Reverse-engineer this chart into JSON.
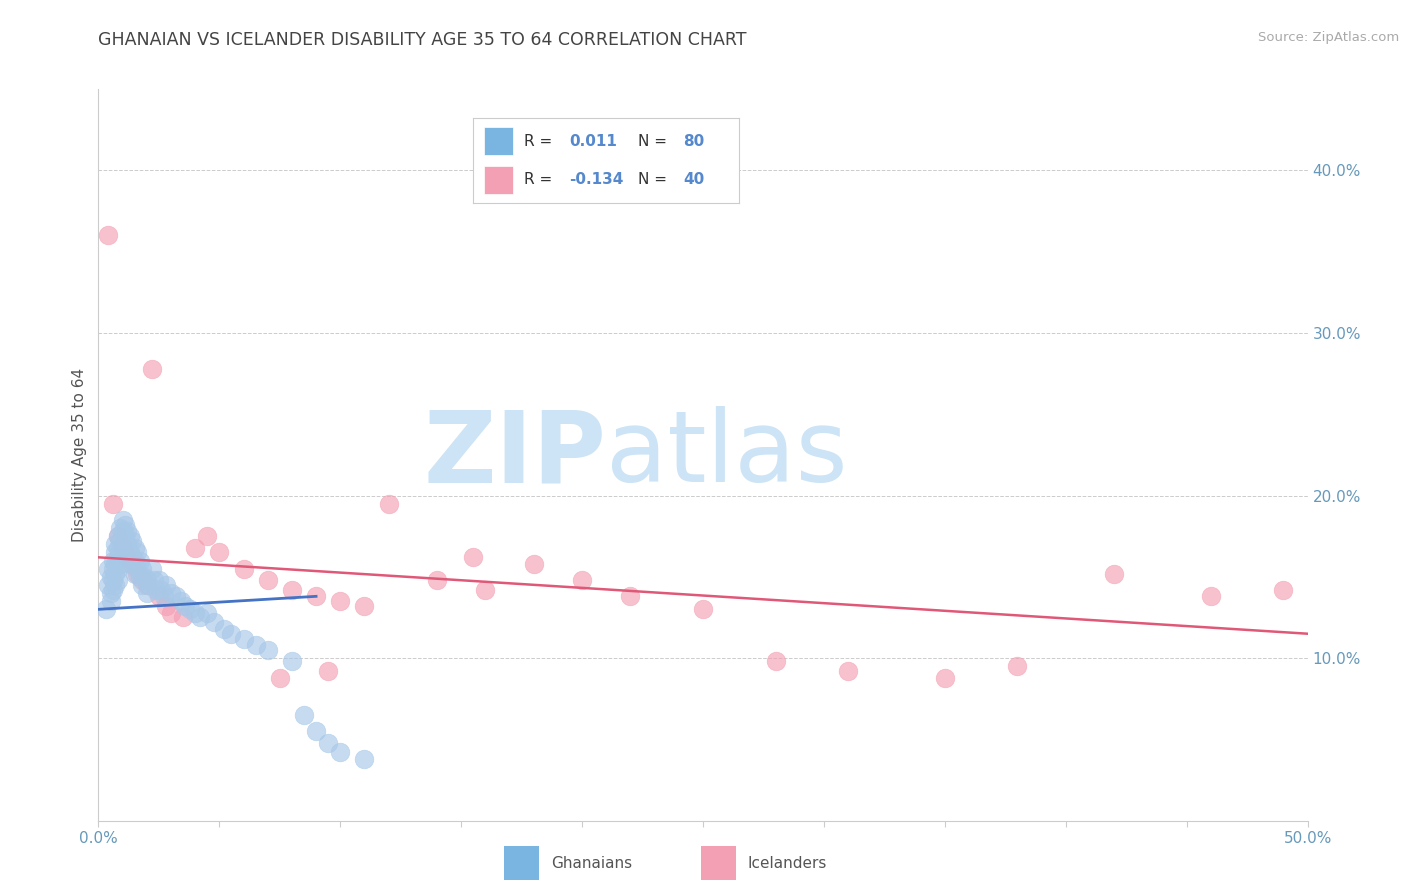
{
  "title": "GHANAIAN VS ICELANDER DISABILITY AGE 35 TO 64 CORRELATION CHART",
  "source": "Source: ZipAtlas.com",
  "ylabel": "Disability Age 35 to 64",
  "xlim": [
    0.0,
    0.5
  ],
  "ylim": [
    0.0,
    0.45
  ],
  "ytick_positions": [
    0.1,
    0.2,
    0.3,
    0.4
  ],
  "ytick_labels": [
    "10.0%",
    "20.0%",
    "30.0%",
    "40.0%"
  ],
  "background_color": "#ffffff",
  "watermark_zip": "ZIP",
  "watermark_atlas": "atlas",
  "watermark_color": "#cce4f5",
  "legend_r1_label": "R = ",
  "legend_r1_val": " 0.011",
  "legend_n1_label": "N = ",
  "legend_n1_val": "80",
  "legend_r2_label": "R = ",
  "legend_r2_val": "-0.134",
  "legend_n2_label": "N = ",
  "legend_n2_val": "40",
  "legend_color_blue": "#7ab4e0",
  "legend_color_pink": "#f4a0b4",
  "legend_text_dark": "#333333",
  "legend_text_blue": "#5588cc",
  "ghanaian_color": "#a8c8e8",
  "icelander_color": "#f4a0b4",
  "trend_ghanaian_color": "#4472c4",
  "trend_icelander_color": "#e05878",
  "title_color": "#444444",
  "axis_label_color": "#555555",
  "tick_color": "#6699bb",
  "grid_color": "#cccccc",
  "ghanaians_x": [
    0.003,
    0.004,
    0.004,
    0.005,
    0.005,
    0.005,
    0.006,
    0.006,
    0.006,
    0.006,
    0.007,
    0.007,
    0.007,
    0.007,
    0.007,
    0.008,
    0.008,
    0.008,
    0.008,
    0.008,
    0.009,
    0.009,
    0.009,
    0.009,
    0.01,
    0.01,
    0.01,
    0.01,
    0.011,
    0.011,
    0.011,
    0.011,
    0.012,
    0.012,
    0.012,
    0.013,
    0.013,
    0.013,
    0.014,
    0.014,
    0.015,
    0.015,
    0.015,
    0.016,
    0.016,
    0.017,
    0.017,
    0.018,
    0.018,
    0.019,
    0.02,
    0.02,
    0.021,
    0.022,
    0.023,
    0.024,
    0.025,
    0.026,
    0.027,
    0.028,
    0.03,
    0.032,
    0.034,
    0.036,
    0.038,
    0.04,
    0.042,
    0.045,
    0.048,
    0.052,
    0.055,
    0.06,
    0.065,
    0.07,
    0.08,
    0.085,
    0.09,
    0.095,
    0.1,
    0.11
  ],
  "ghanaians_y": [
    0.13,
    0.155,
    0.145,
    0.15,
    0.14,
    0.135,
    0.16,
    0.155,
    0.148,
    0.142,
    0.17,
    0.165,
    0.158,
    0.152,
    0.145,
    0.175,
    0.168,
    0.162,
    0.155,
    0.148,
    0.18,
    0.172,
    0.165,
    0.158,
    0.185,
    0.178,
    0.17,
    0.162,
    0.182,
    0.175,
    0.168,
    0.16,
    0.178,
    0.17,
    0.162,
    0.175,
    0.165,
    0.158,
    0.172,
    0.162,
    0.168,
    0.16,
    0.152,
    0.165,
    0.155,
    0.16,
    0.15,
    0.155,
    0.145,
    0.15,
    0.148,
    0.14,
    0.145,
    0.155,
    0.148,
    0.142,
    0.148,
    0.142,
    0.138,
    0.145,
    0.14,
    0.138,
    0.135,
    0.132,
    0.13,
    0.128,
    0.125,
    0.128,
    0.122,
    0.118,
    0.115,
    0.112,
    0.108,
    0.105,
    0.098,
    0.065,
    0.055,
    0.048,
    0.042,
    0.038
  ],
  "icelanders_x": [
    0.004,
    0.006,
    0.008,
    0.01,
    0.012,
    0.014,
    0.016,
    0.018,
    0.02,
    0.022,
    0.025,
    0.028,
    0.03,
    0.035,
    0.04,
    0.045,
    0.05,
    0.06,
    0.07,
    0.08,
    0.09,
    0.1,
    0.11,
    0.12,
    0.14,
    0.16,
    0.18,
    0.2,
    0.22,
    0.25,
    0.28,
    0.31,
    0.35,
    0.38,
    0.42,
    0.46,
    0.49,
    0.155,
    0.095,
    0.075
  ],
  "icelanders_y": [
    0.36,
    0.195,
    0.175,
    0.168,
    0.162,
    0.158,
    0.152,
    0.148,
    0.145,
    0.278,
    0.138,
    0.132,
    0.128,
    0.125,
    0.168,
    0.175,
    0.165,
    0.155,
    0.148,
    0.142,
    0.138,
    0.135,
    0.132,
    0.195,
    0.148,
    0.142,
    0.158,
    0.148,
    0.138,
    0.13,
    0.098,
    0.092,
    0.088,
    0.095,
    0.152,
    0.138,
    0.142,
    0.162,
    0.092,
    0.088
  ],
  "trend_gh_x0": 0.0,
  "trend_gh_x1": 0.09,
  "trend_gh_y0": 0.13,
  "trend_gh_y1": 0.138,
  "trend_ic_x0": 0.0,
  "trend_ic_x1": 0.5,
  "trend_ic_y0": 0.162,
  "trend_ic_y1": 0.115
}
